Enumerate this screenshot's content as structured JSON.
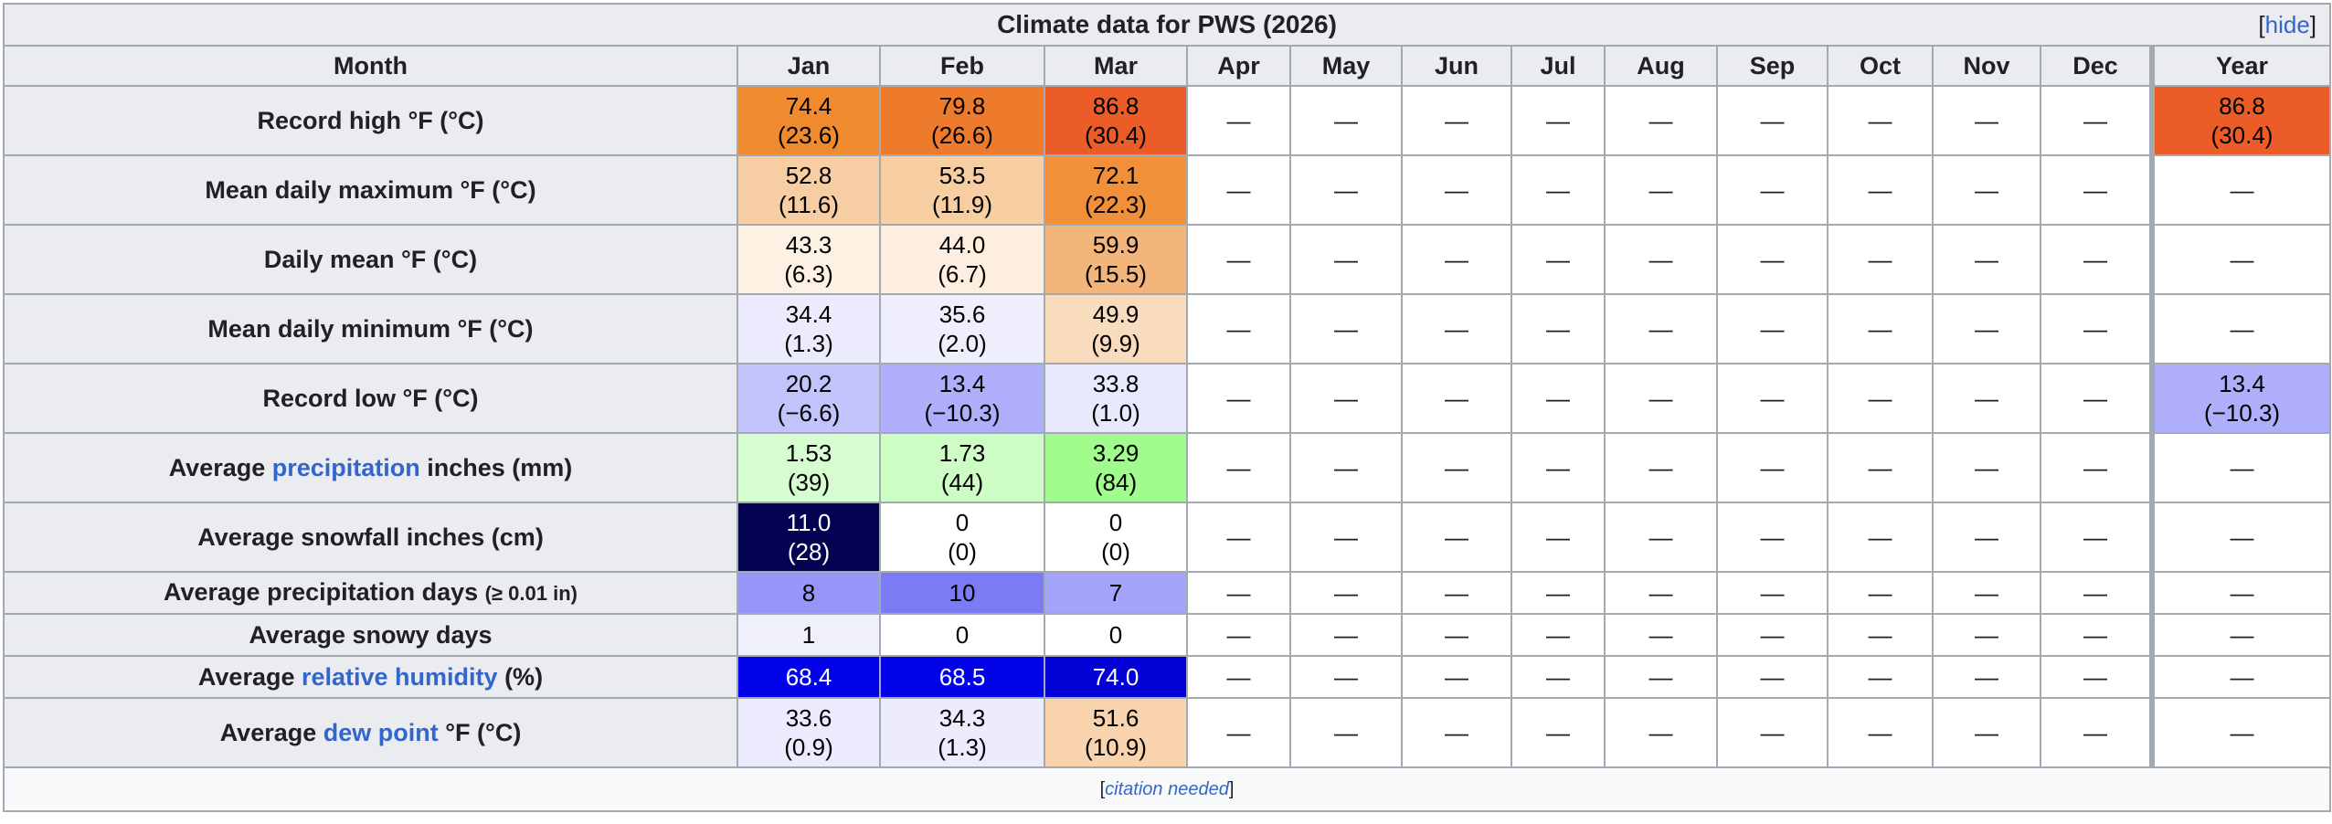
{
  "title": "Climate data for PWS (2026)",
  "hide_label": "[hide]",
  "header": {
    "label": "Month",
    "months": [
      "Jan",
      "Feb",
      "Mar",
      "Apr",
      "May",
      "Jun",
      "Jul",
      "Aug",
      "Sep",
      "Oct",
      "Nov",
      "Dec"
    ],
    "year": "Year"
  },
  "rows": [
    {
      "label": "Record high °F (°C)",
      "cells": [
        {
          "v": "74.4",
          "s": "(23.6)",
          "bg": "#f08a2e",
          "fg": "#000000"
        },
        {
          "v": "79.8",
          "s": "(26.6)",
          "bg": "#ee7a2b",
          "fg": "#000000"
        },
        {
          "v": "86.8",
          "s": "(30.4)",
          "bg": "#eb5c28",
          "fg": "#000000"
        },
        {
          "v": "—"
        },
        {
          "v": "—"
        },
        {
          "v": "—"
        },
        {
          "v": "—"
        },
        {
          "v": "—"
        },
        {
          "v": "—"
        },
        {
          "v": "—"
        },
        {
          "v": "—"
        },
        {
          "v": "—"
        }
      ],
      "year": {
        "v": "86.8",
        "s": "(30.4)",
        "bg": "#eb5c28",
        "fg": "#000000"
      }
    },
    {
      "label": "Mean daily maximum °F (°C)",
      "cells": [
        {
          "v": "52.8",
          "s": "(11.6)",
          "bg": "#f7cda4",
          "fg": "#000000"
        },
        {
          "v": "53.5",
          "s": "(11.9)",
          "bg": "#f7cda2",
          "fg": "#000000"
        },
        {
          "v": "72.1",
          "s": "(22.3)",
          "bg": "#f19039",
          "fg": "#000000"
        },
        {
          "v": "—"
        },
        {
          "v": "—"
        },
        {
          "v": "—"
        },
        {
          "v": "—"
        },
        {
          "v": "—"
        },
        {
          "v": "—"
        },
        {
          "v": "—"
        },
        {
          "v": "—"
        },
        {
          "v": "—"
        }
      ],
      "year": {
        "v": "—"
      }
    },
    {
      "label": "Daily mean °F (°C)",
      "cells": [
        {
          "v": "43.3",
          "s": "(6.3)",
          "bg": "#fdf1e4",
          "fg": "#000000"
        },
        {
          "v": "44.0",
          "s": "(6.7)",
          "bg": "#fdeee0",
          "fg": "#000000"
        },
        {
          "v": "59.9",
          "s": "(15.5)",
          "bg": "#f4b57a",
          "fg": "#000000"
        },
        {
          "v": "—"
        },
        {
          "v": "—"
        },
        {
          "v": "—"
        },
        {
          "v": "—"
        },
        {
          "v": "—"
        },
        {
          "v": "—"
        },
        {
          "v": "—"
        },
        {
          "v": "—"
        },
        {
          "v": "—"
        }
      ],
      "year": {
        "v": "—"
      }
    },
    {
      "label": "Mean daily minimum °F (°C)",
      "cells": [
        {
          "v": "34.4",
          "s": "(1.3)",
          "bg": "#ebebfd",
          "fg": "#000000"
        },
        {
          "v": "35.6",
          "s": "(2.0)",
          "bg": "#eeeefd",
          "fg": "#000000"
        },
        {
          "v": "49.9",
          "s": "(9.9)",
          "bg": "#f9dbbe",
          "fg": "#000000"
        },
        {
          "v": "—"
        },
        {
          "v": "—"
        },
        {
          "v": "—"
        },
        {
          "v": "—"
        },
        {
          "v": "—"
        },
        {
          "v": "—"
        },
        {
          "v": "—"
        },
        {
          "v": "—"
        },
        {
          "v": "—"
        }
      ],
      "year": {
        "v": "—"
      }
    },
    {
      "label": "Record low °F (°C)",
      "cells": [
        {
          "v": "20.2",
          "s": "(−6.6)",
          "bg": "#c3c3fb",
          "fg": "#000000"
        },
        {
          "v": "13.4",
          "s": "(−10.3)",
          "bg": "#aeaefa",
          "fg": "#000000"
        },
        {
          "v": "33.8",
          "s": "(1.0)",
          "bg": "#e9e9fd",
          "fg": "#000000"
        },
        {
          "v": "—"
        },
        {
          "v": "—"
        },
        {
          "v": "—"
        },
        {
          "v": "—"
        },
        {
          "v": "—"
        },
        {
          "v": "—"
        },
        {
          "v": "—"
        },
        {
          "v": "—"
        },
        {
          "v": "—"
        }
      ],
      "year": {
        "v": "13.4",
        "s": "(−10.3)",
        "bg": "#aeaefa",
        "fg": "#000000"
      }
    },
    {
      "label_pre": "Average ",
      "label_link": "precipitation",
      "label_post": " inches (mm)",
      "cells": [
        {
          "v": "1.53",
          "s": "(39)",
          "bg": "#d6fdd0",
          "fg": "#000000"
        },
        {
          "v": "1.73",
          "s": "(44)",
          "bg": "#cdfdc4",
          "fg": "#000000"
        },
        {
          "v": "3.29",
          "s": "(84)",
          "bg": "#a1fc8e",
          "fg": "#000000"
        },
        {
          "v": "—"
        },
        {
          "v": "—"
        },
        {
          "v": "—"
        },
        {
          "v": "—"
        },
        {
          "v": "—"
        },
        {
          "v": "—"
        },
        {
          "v": "—"
        },
        {
          "v": "—"
        },
        {
          "v": "—"
        }
      ],
      "year": {
        "v": "—"
      }
    },
    {
      "label": "Average snowfall inches (cm)",
      "cells": [
        {
          "v": "11.0",
          "s": "(28)",
          "bg": "#030352",
          "fg": "#ffffff"
        },
        {
          "v": "0",
          "s": "(0)",
          "bg": "#ffffff",
          "fg": "#000000"
        },
        {
          "v": "0",
          "s": "(0)",
          "bg": "#ffffff",
          "fg": "#000000"
        },
        {
          "v": "—"
        },
        {
          "v": "—"
        },
        {
          "v": "—"
        },
        {
          "v": "—"
        },
        {
          "v": "—"
        },
        {
          "v": "—"
        },
        {
          "v": "—"
        },
        {
          "v": "—"
        },
        {
          "v": "—"
        }
      ],
      "year": {
        "v": "—"
      }
    },
    {
      "label": "Average precipitation days",
      "label_small": "(≥ 0.01 in)",
      "single": true,
      "cells": [
        {
          "v": "8",
          "bg": "#9696f9",
          "fg": "#000000"
        },
        {
          "v": "10",
          "bg": "#7b7bf6",
          "fg": "#000000"
        },
        {
          "v": "7",
          "bg": "#a4a4fa",
          "fg": "#000000"
        },
        {
          "v": "—"
        },
        {
          "v": "—"
        },
        {
          "v": "—"
        },
        {
          "v": "—"
        },
        {
          "v": "—"
        },
        {
          "v": "—"
        },
        {
          "v": "—"
        },
        {
          "v": "—"
        },
        {
          "v": "—"
        }
      ],
      "year": {
        "v": "—"
      }
    },
    {
      "label": "Average snowy days",
      "single": true,
      "cells": [
        {
          "v": "1",
          "bg": "#f0f0fd",
          "fg": "#000000"
        },
        {
          "v": "0",
          "bg": "#ffffff",
          "fg": "#000000"
        },
        {
          "v": "0",
          "bg": "#ffffff",
          "fg": "#000000"
        },
        {
          "v": "—"
        },
        {
          "v": "—"
        },
        {
          "v": "—"
        },
        {
          "v": "—"
        },
        {
          "v": "—"
        },
        {
          "v": "—"
        },
        {
          "v": "—"
        },
        {
          "v": "—"
        },
        {
          "v": "—"
        }
      ],
      "year": {
        "v": "—"
      }
    },
    {
      "label_pre": "Average ",
      "label_link": "relative humidity",
      "label_post": " (%)",
      "single": true,
      "cells": [
        {
          "v": "68.4",
          "bg": "#0303ea",
          "fg": "#ffffff"
        },
        {
          "v": "68.5",
          "bg": "#0303ea",
          "fg": "#ffffff"
        },
        {
          "v": "74.0",
          "bg": "#0202d6",
          "fg": "#ffffff"
        },
        {
          "v": "—"
        },
        {
          "v": "—"
        },
        {
          "v": "—"
        },
        {
          "v": "—"
        },
        {
          "v": "—"
        },
        {
          "v": "—"
        },
        {
          "v": "—"
        },
        {
          "v": "—"
        },
        {
          "v": "—"
        }
      ],
      "year": {
        "v": "—"
      }
    },
    {
      "label_pre": "Average ",
      "label_link": "dew point",
      "label_post": " °F (°C)",
      "cells": [
        {
          "v": "33.6",
          "s": "(0.9)",
          "bg": "#ebebfd",
          "fg": "#000000"
        },
        {
          "v": "34.3",
          "s": "(1.3)",
          "bg": "#ececfd",
          "fg": "#000000"
        },
        {
          "v": "51.6",
          "s": "(10.9)",
          "bg": "#f8d3ad",
          "fg": "#000000"
        },
        {
          "v": "—"
        },
        {
          "v": "—"
        },
        {
          "v": "—"
        },
        {
          "v": "—"
        },
        {
          "v": "—"
        },
        {
          "v": "—"
        },
        {
          "v": "—"
        },
        {
          "v": "—"
        },
        {
          "v": "—"
        }
      ],
      "year": {
        "v": "—"
      }
    }
  ],
  "footer": {
    "pre": "[",
    "text": "citation needed",
    "post": "]"
  }
}
